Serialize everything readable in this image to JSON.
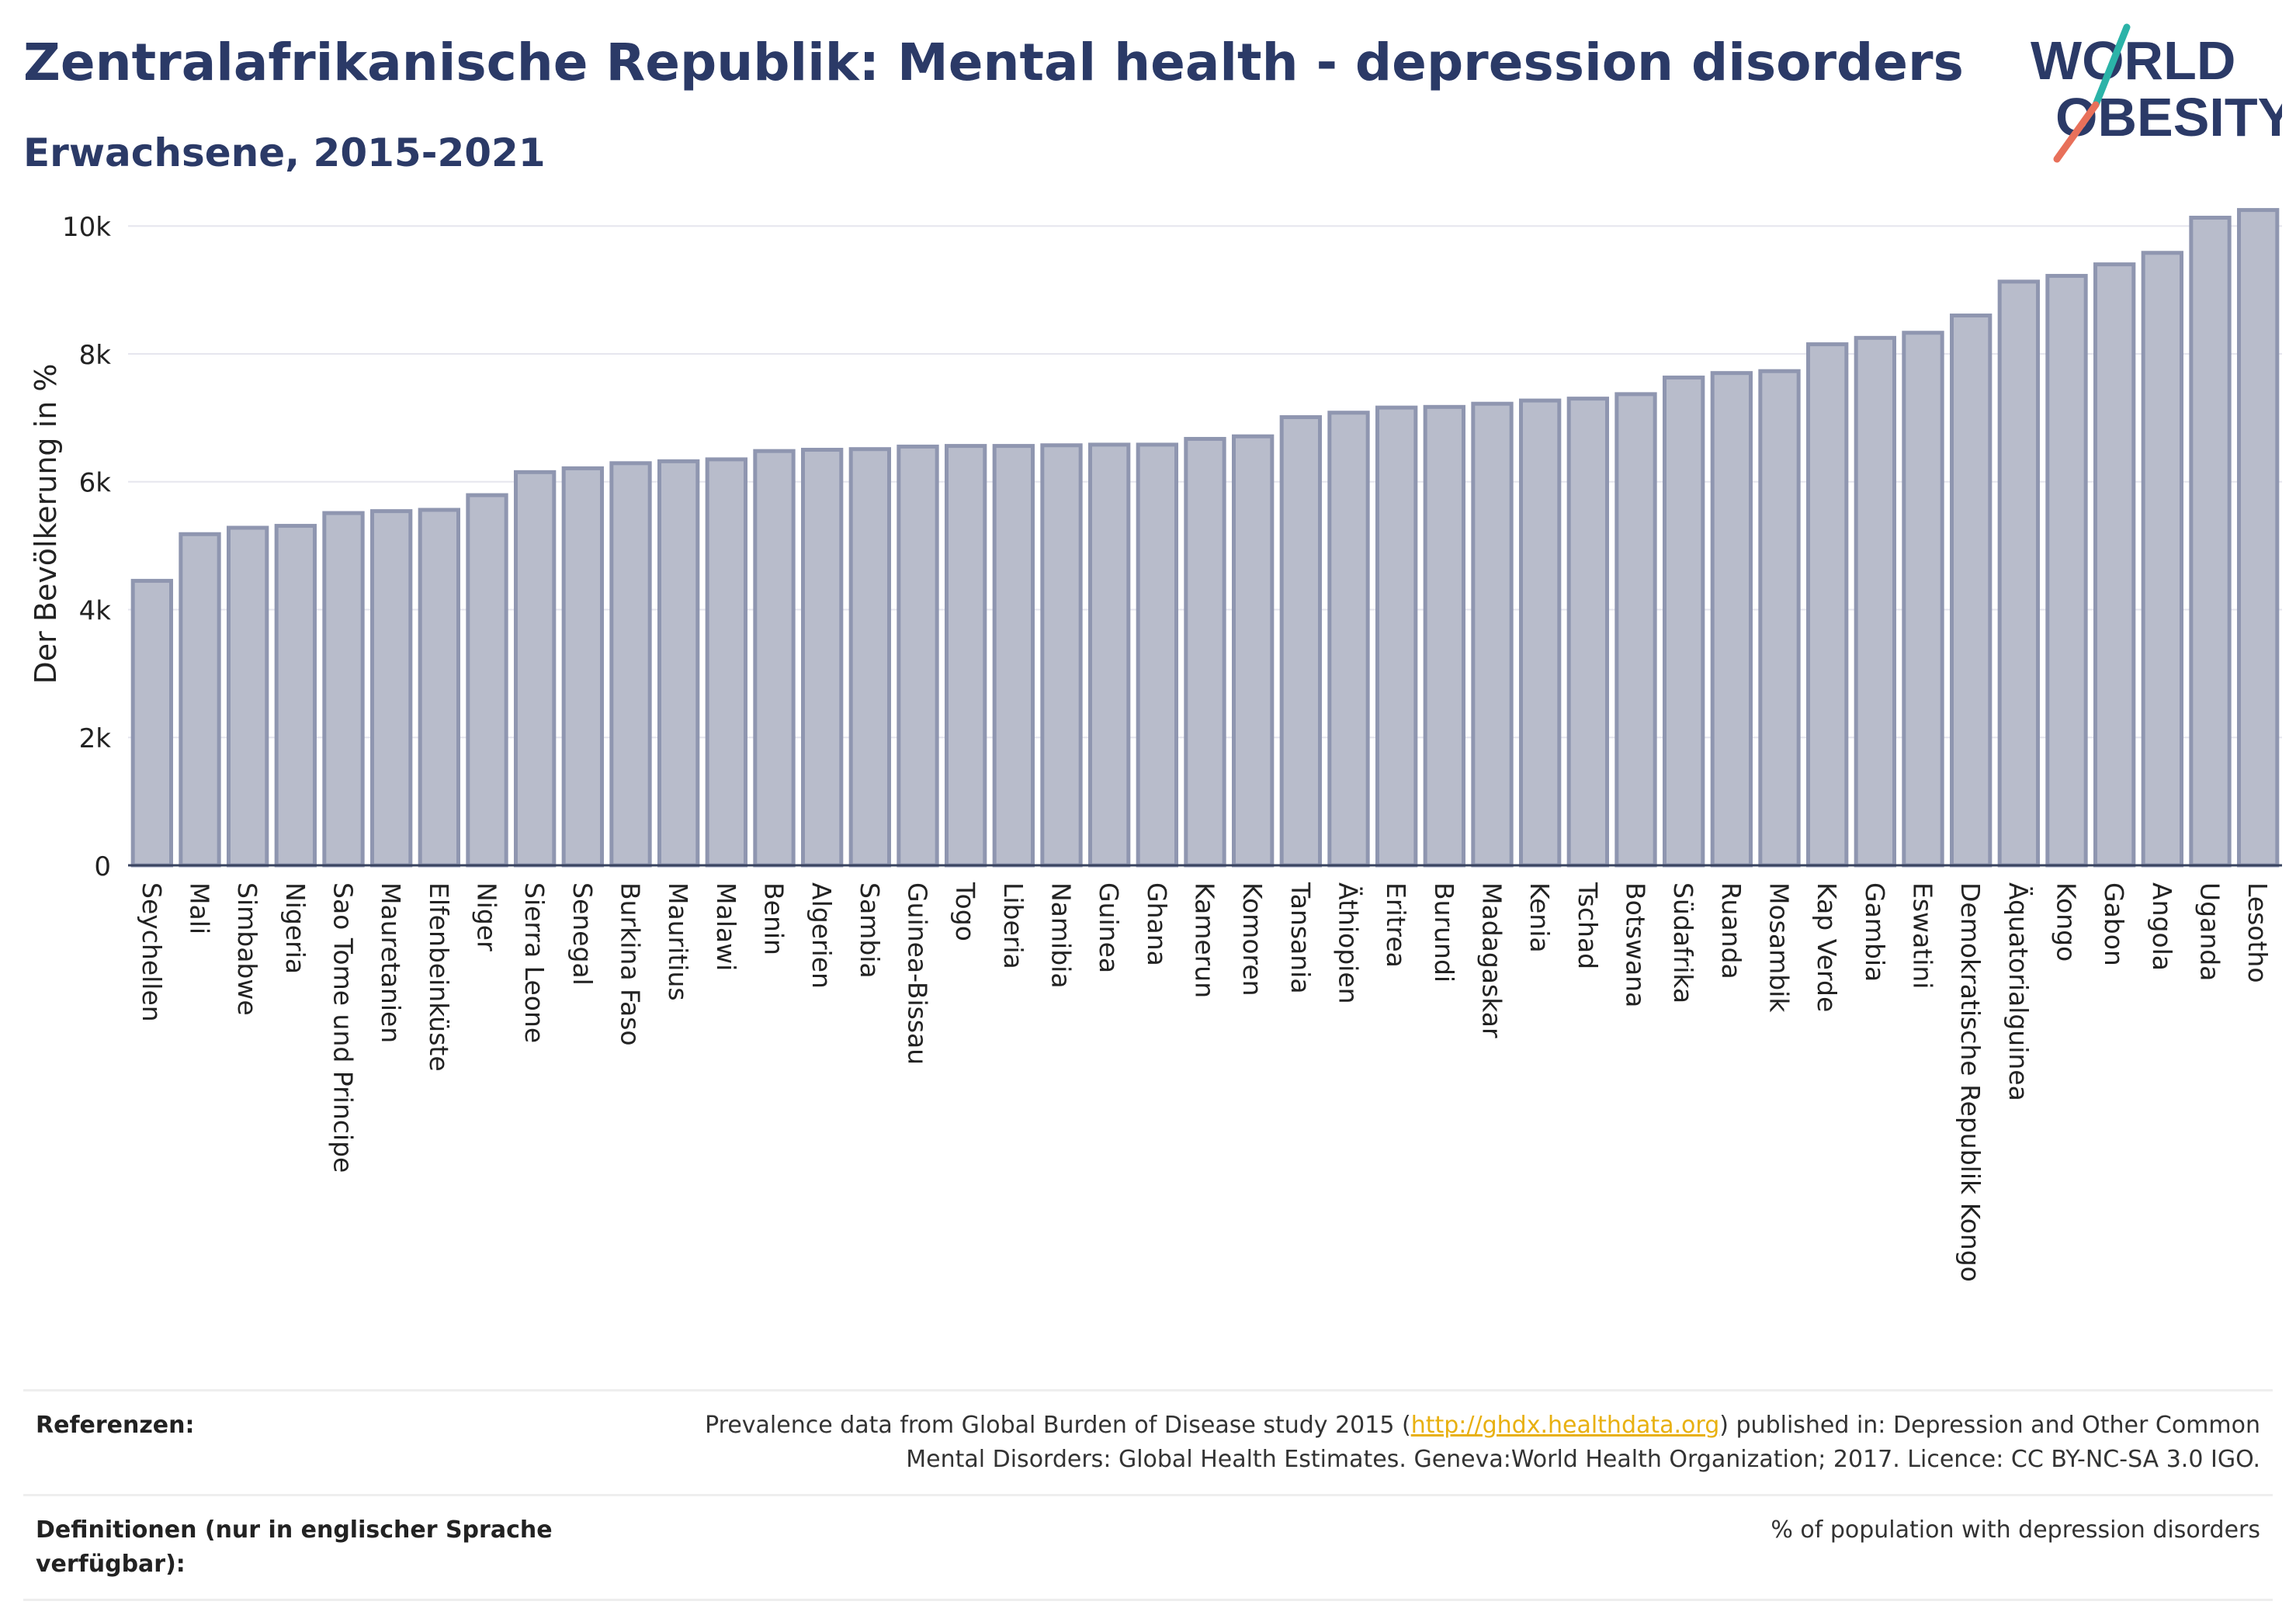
{
  "header": {
    "title": "Zentralafrikanische Republik: Mental health - depression disorders",
    "subtitle": "Erwachsene, 2015-2021",
    "logo_line1": "WORLD",
    "logo_line2": "OBESITY"
  },
  "chart_data": {
    "type": "bar",
    "title": "Zentralafrikanische Republik: Mental health - depression disorders",
    "subtitle": "Erwachsene, 2015-2021",
    "xlabel": "",
    "ylabel": "Der Bevölkerung in %",
    "ylim": [
      0,
      10500
    ],
    "yticks": [
      0,
      2000,
      4000,
      6000,
      8000,
      10000
    ],
    "ytick_labels": [
      "0",
      "2k",
      "4k",
      "6k",
      "8k",
      "10k"
    ],
    "grid": true,
    "bar_color": "#b8bccb",
    "bar_edge_color": "#8f96b0",
    "categories": [
      "Seychellen",
      "Mali",
      "Simbabwe",
      "Nigeria",
      "Sao Tome und Principe",
      "Mauretanien",
      "Elfenbeinküste",
      "Niger",
      "Sierra Leone",
      "Senegal",
      "Burkina Faso",
      "Mauritius",
      "Malawi",
      "Benin",
      "Algerien",
      "Sambia",
      "Guinea-Bissau",
      "Togo",
      "Liberia",
      "Namibia",
      "Guinea",
      "Ghana",
      "Kamerun",
      "Komoren",
      "Tansania",
      "Äthiopien",
      "Eritrea",
      "Burundi",
      "Madagaskar",
      "Kenia",
      "Tschad",
      "Botswana",
      "Südafrika",
      "Ruanda",
      "Mosambik",
      "Kap Verde",
      "Gambia",
      "Eswatini",
      "Demokratische Republik Kongo",
      "Äquatorialguinea",
      "Kongo",
      "Gabon",
      "Angola",
      "Uganda",
      "Lesotho"
    ],
    "values": [
      4450,
      5180,
      5280,
      5310,
      5510,
      5540,
      5560,
      5790,
      6150,
      6210,
      6290,
      6320,
      6350,
      6480,
      6500,
      6510,
      6550,
      6560,
      6560,
      6570,
      6580,
      6580,
      6670,
      6710,
      7010,
      7080,
      7160,
      7170,
      7220,
      7270,
      7300,
      7370,
      7630,
      7700,
      7730,
      8150,
      8250,
      8330,
      8600,
      9130,
      9220,
      9400,
      9580,
      10130,
      10250
    ]
  },
  "footer": {
    "references_label": "Referenzen:",
    "references_pre": "Prevalence data from Global Burden of Disease study 2015 (",
    "references_link": "http://ghdx.healthdata.org",
    "references_post": ") published in: Depression and Other Common Mental Disorders: Global Health Estimates. Geneva:World Health Organization; 2017. Licence: CC BY-NC-SA 3.0 IGO.",
    "definitions_label": "Definitionen (nur in englischer Sprache verfügbar):",
    "definitions_text": "% of population with depression disorders"
  },
  "colors": {
    "title": "#2b3a67",
    "logo_teal": "#2bb3a8",
    "logo_coral": "#e8705a",
    "link": "#e8b010"
  }
}
